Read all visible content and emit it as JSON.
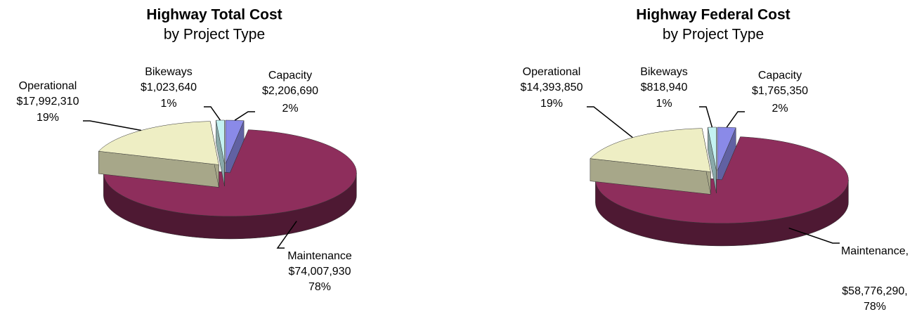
{
  "chart_data": [
    {
      "type": "pie",
      "title": "Highway Total Cost",
      "subtitle": "by Project Type",
      "categories": [
        "Capacity",
        "Maintenance",
        "Operational",
        "Bikeways"
      ],
      "values": [
        2206690,
        74007930,
        17992310,
        1023640
      ],
      "value_labels": [
        "$2,206,690",
        "$74,007,930",
        "$17,992,310",
        "$1,023,640"
      ],
      "percent_labels": [
        "2%",
        "78%",
        "19%",
        "1%"
      ],
      "colors": [
        "#8a8ae8",
        "#8e2e5c",
        "#eeeec4",
        "#c4f2f2"
      ]
    },
    {
      "type": "pie",
      "title": "Highway Federal Cost",
      "subtitle": "by Project Type",
      "categories": [
        "Capacity",
        "Maintenance,",
        "Operational",
        "Bikeways"
      ],
      "values": [
        1765350,
        58776290,
        14393850,
        818940
      ],
      "value_labels": [
        "$1,765,350",
        "$58,776,290,",
        "$14,393,850",
        "$818,940"
      ],
      "percent_labels": [
        "2%",
        "78%",
        "19%",
        "1%"
      ],
      "colors": [
        "#8a8ae8",
        "#8e2e5c",
        "#eeeec4",
        "#c4f2f2"
      ]
    }
  ]
}
